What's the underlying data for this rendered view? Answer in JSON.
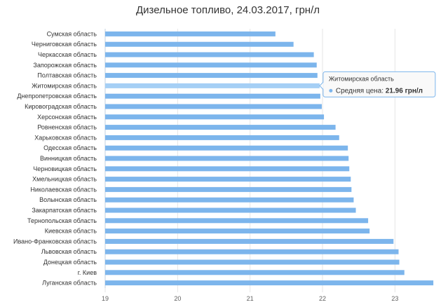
{
  "chart_data": {
    "type": "bar",
    "orientation": "horizontal",
    "title": "Дизельное топливо, 24.03.2017, грн/л",
    "xlabel": "",
    "ylabel": "",
    "xlim": [
      19,
      23.5
    ],
    "ticks": [
      "19",
      "20",
      "21",
      "22",
      "23"
    ],
    "grid": true,
    "colors": {
      "bar": "#7cb5ec",
      "bar_highlight": "#a5cff5",
      "grid": "#e6e6e6",
      "axis": "#c0d0e0"
    },
    "categories": [
      "Сумская область",
      "Черниговская область",
      "Черкасская область",
      "Запорожская область",
      "Полтавская область",
      "Житомирская область",
      "Днепропетровская область",
      "Кировоградская область",
      "Херсонская область",
      "Ровненская область",
      "Харьковская область",
      "Одесская область",
      "Винницкая область",
      "Черновицкая область",
      "Хмельницкая область",
      "Николаевская область",
      "Волынская область",
      "Закарпатская область",
      "Тернопольская область",
      "Киевская область",
      "Ивано-Франковская область",
      "Львовская область",
      "Донецкая область",
      "г. Киев",
      "Луганская область"
    ],
    "values": [
      21.35,
      21.6,
      21.88,
      21.92,
      21.93,
      21.96,
      21.97,
      21.99,
      22.02,
      22.18,
      22.23,
      22.35,
      22.36,
      22.37,
      22.39,
      22.4,
      22.43,
      22.46,
      22.63,
      22.65,
      22.98,
      23.05,
      23.06,
      23.13,
      23.53
    ],
    "highlight_index": 5,
    "tooltip": {
      "title": "Житомирская область",
      "series_label": "Средняя цена: ",
      "value_text": "21.96 грн/л"
    }
  }
}
